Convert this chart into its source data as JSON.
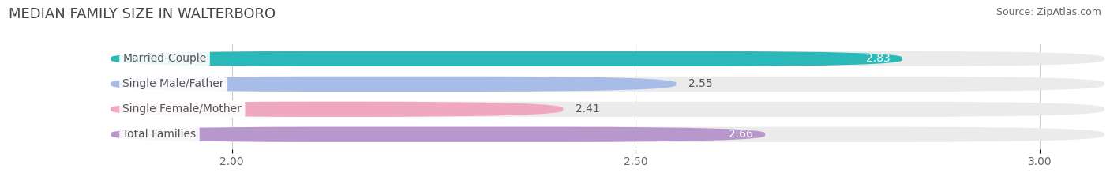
{
  "title": "MEDIAN FAMILY SIZE IN WALTERBORO",
  "source": "Source: ZipAtlas.com",
  "categories": [
    "Married-Couple",
    "Single Male/Father",
    "Single Female/Mother",
    "Total Families"
  ],
  "values": [
    2.83,
    2.55,
    2.41,
    2.66
  ],
  "bar_colors": [
    "#2ab8b8",
    "#a8bce8",
    "#f0a8c0",
    "#b898cc"
  ],
  "value_inside": [
    true,
    false,
    false,
    true
  ],
  "value_inside_color": "#ffffff",
  "value_outside_color": "#555555",
  "label_text_color": "#555555",
  "xlim": [
    1.72,
    3.08
  ],
  "xstart": 1.85,
  "xticks": [
    2.0,
    2.5,
    3.0
  ],
  "background_color": "#ffffff",
  "bar_bg_color": "#ebebeb",
  "title_fontsize": 13,
  "source_fontsize": 9,
  "tick_fontsize": 10,
  "label_fontsize": 10,
  "value_fontsize": 10
}
